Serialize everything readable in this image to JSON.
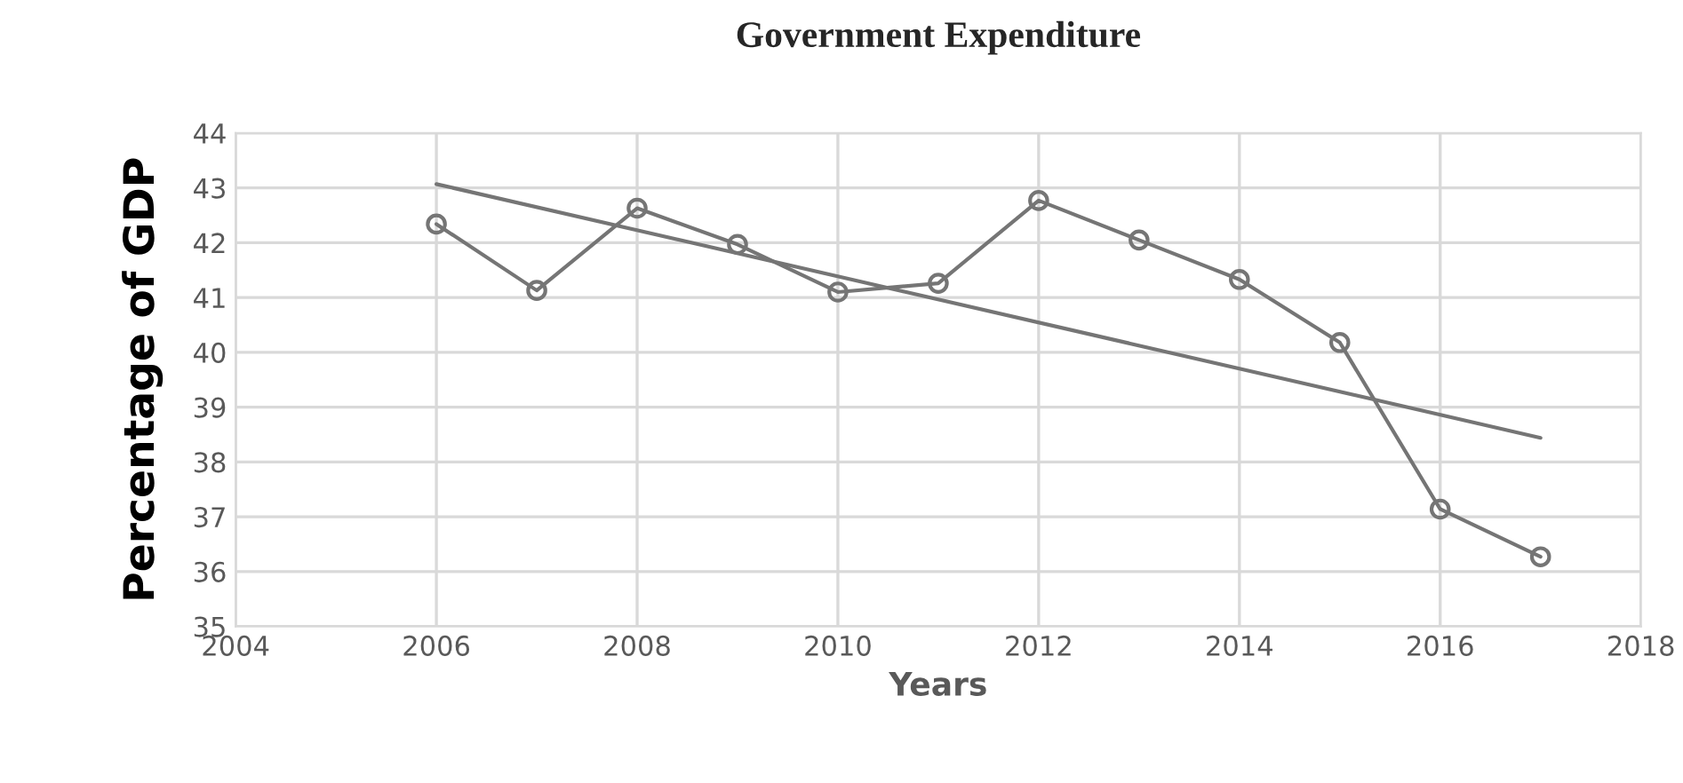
{
  "chart_data": {
    "type": "line",
    "title": "Government Expenditure",
    "xlabel": "Years",
    "ylabel": "Percentage of GDP",
    "x": [
      2006,
      2007,
      2008,
      2009,
      2010,
      2011,
      2012,
      2013,
      2014,
      2015,
      2016,
      2017
    ],
    "series": [
      {
        "color": "#757575",
        "marker": "circle",
        "values": [
          42.34,
          41.13,
          42.63,
          41.97,
          41.1,
          41.26,
          42.77,
          42.05,
          41.33,
          40.18,
          37.14,
          36.27
        ]
      },
      {
        "type": "line",
        "color": "#757575",
        "marker": "none",
        "x": [
          2006,
          2017
        ],
        "values": [
          43.07,
          38.44
        ]
      }
    ],
    "xlim": [
      2004,
      2018
    ],
    "xticks": [
      2004,
      2006,
      2008,
      2010,
      2012,
      2014,
      2016,
      2018
    ],
    "ylim": [
      35,
      44
    ],
    "yticks": [
      35,
      36,
      37,
      38,
      39,
      40,
      41,
      42,
      43,
      44
    ],
    "grid": true,
    "line_style": "solid"
  }
}
